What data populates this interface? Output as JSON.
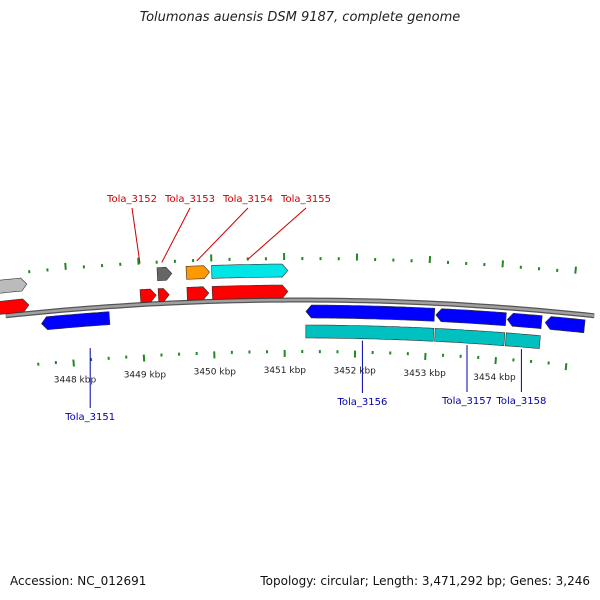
{
  "title": "Tolumonas auensis DSM 9187, complete genome",
  "footer": {
    "accession": "Accession: NC_012691",
    "stats": "Topology: circular; Length: 3,471,292 bp; Genes: 3,246"
  },
  "colors": {
    "forward_cds": "#ff0000",
    "forward_other_cds": "#00e5e5",
    "forward_pseudo": "#ff9900",
    "forward_gray": "#666666",
    "forward_light": "#bbbbbb",
    "reverse_cds": "#0000ff",
    "reverse_rna": "#00c0c0",
    "label_forward": "#cc0000",
    "label_reverse": "#0000aa",
    "ticks": "#228822",
    "backbone": "#808080"
  },
  "kbp_labels": [
    {
      "kbp": 3448,
      "text": "3448 kbp"
    },
    {
      "kbp": 3449,
      "text": "3449 kbp"
    },
    {
      "kbp": 3450,
      "text": "3450 kbp"
    },
    {
      "kbp": 3451,
      "text": "3451 kbp"
    },
    {
      "kbp": 3452,
      "text": "3452 kbp"
    },
    {
      "kbp": 3453,
      "text": "3453 kbp"
    },
    {
      "kbp": 3454,
      "text": "3454 kbp"
    }
  ],
  "genes_forward": [
    {
      "start": 3447.0,
      "end": 3447.45,
      "lane": "upper",
      "color": "forward_light",
      "dir": "+"
    },
    {
      "start": 3447.0,
      "end": 3447.45,
      "lane": "lower",
      "color": "forward_cds",
      "dir": "+"
    },
    {
      "start": 3449.0,
      "end": 3449.22,
      "lane": "lower",
      "color": "forward_cds",
      "dir": "+"
    },
    {
      "start": 3449.25,
      "end": 3449.4,
      "lane": "lower",
      "color": "forward_cds",
      "dir": "+"
    },
    {
      "start": 3449.25,
      "end": 3449.45,
      "lane": "upper",
      "color": "forward_gray",
      "dir": "+"
    },
    {
      "start": 3449.65,
      "end": 3449.97,
      "lane": "upper",
      "color": "forward_pseudo",
      "dir": "+"
    },
    {
      "start": 3449.65,
      "end": 3449.95,
      "lane": "lower",
      "color": "forward_cds",
      "dir": "+"
    },
    {
      "start": 3450.0,
      "end": 3451.05,
      "lane": "upper",
      "color": "forward_other_cds",
      "dir": "+"
    },
    {
      "start": 3450.0,
      "end": 3451.05,
      "lane": "lower",
      "color": "forward_cds",
      "dir": "+"
    }
  ],
  "genes_reverse": [
    {
      "start": 3447.6,
      "end": 3448.55,
      "lane": "upper",
      "color": "reverse_cds",
      "dir": "-"
    },
    {
      "start": 3451.3,
      "end": 3453.1,
      "lane": "upper",
      "color": "reverse_cds",
      "dir": "-"
    },
    {
      "start": 3453.12,
      "end": 3454.1,
      "lane": "upper",
      "color": "reverse_cds",
      "dir": "-"
    },
    {
      "start": 3454.12,
      "end": 3454.6,
      "lane": "upper",
      "color": "reverse_cds",
      "dir": "-"
    },
    {
      "start": 3454.65,
      "end": 3455.2,
      "lane": "upper",
      "color": "reverse_cds",
      "dir": "-"
    },
    {
      "start": 3451.3,
      "end": 3453.1,
      "lane": "lower",
      "color": "reverse_rna",
      "dir": "none"
    },
    {
      "start": 3453.12,
      "end": 3454.1,
      "lane": "lower",
      "color": "reverse_rna",
      "dir": "none"
    },
    {
      "start": 3454.12,
      "end": 3454.6,
      "lane": "lower",
      "color": "reverse_rna",
      "dir": "none"
    }
  ],
  "gene_labels_forward": [
    {
      "name": "Tola_3152",
      "pos": 3449.02
    },
    {
      "name": "Tola_3153",
      "pos": 3449.32
    },
    {
      "name": "Tola_3154",
      "pos": 3449.8
    },
    {
      "name": "Tola_3155",
      "pos": 3450.5
    }
  ],
  "gene_labels_reverse": [
    {
      "name": "Tola_3151",
      "pos": 3448.25
    },
    {
      "name": "Tola_3156",
      "pos": 3452.1
    },
    {
      "name": "Tola_3157",
      "pos": 3453.58
    },
    {
      "name": "Tola_3158",
      "pos": 3454.35
    }
  ]
}
